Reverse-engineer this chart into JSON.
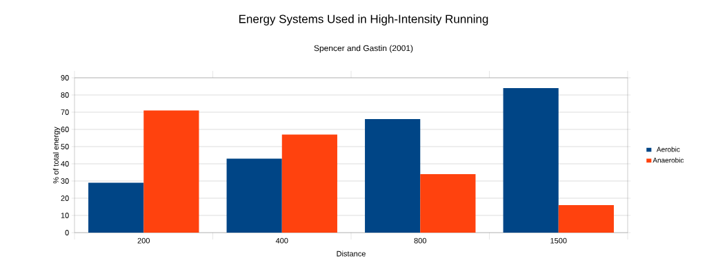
{
  "chart_data": {
    "type": "bar",
    "title": "Energy Systems Used in High-Intensity Running",
    "subtitle": "Spencer and Gastin (2001)",
    "xlabel": "Distance",
    "ylabel": "% of total energy",
    "categories": [
      "200",
      "400",
      "800",
      "1500"
    ],
    "series": [
      {
        "name": "Aerobic",
        "color": "#004586",
        "values": [
          29,
          43,
          66,
          84
        ]
      },
      {
        "name": "Anaerobic",
        "color": "#ff420e",
        "values": [
          71,
          57,
          34,
          16
        ]
      }
    ],
    "ylim": [
      0,
      90
    ],
    "yticks": [
      0,
      10,
      20,
      30,
      40,
      50,
      60,
      70,
      80,
      90
    ],
    "grid": "y",
    "legend": "right"
  }
}
